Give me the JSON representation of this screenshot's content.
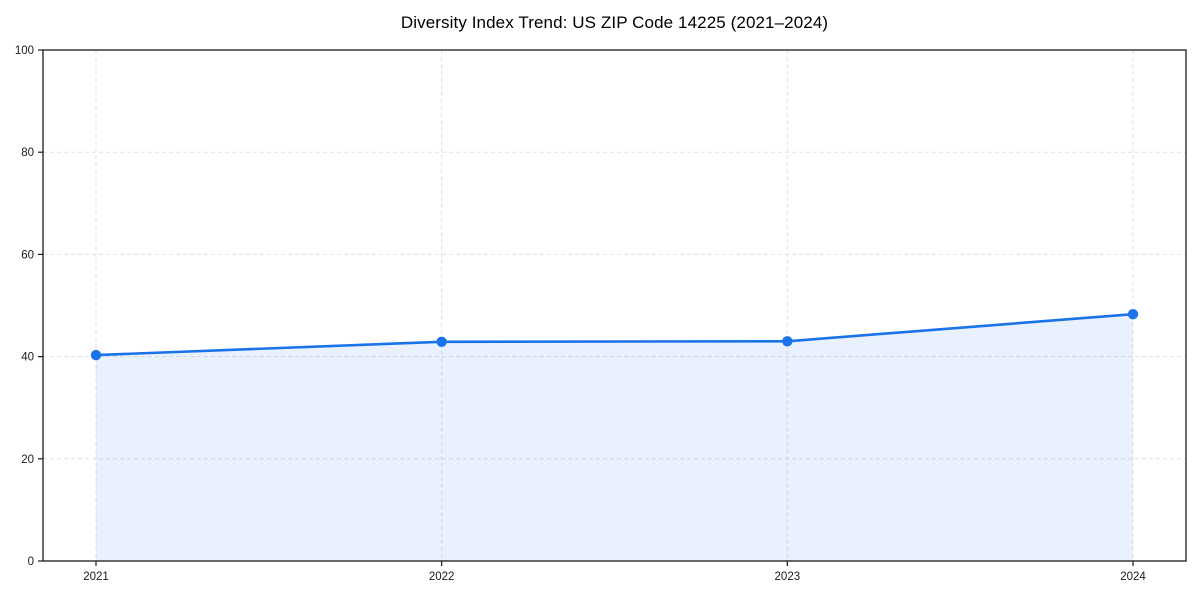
{
  "page": {
    "background": "#ffffff"
  },
  "chart_data": {
    "type": "area",
    "title": "Diversity Index Trend: US ZIP Code 14225 (2021–2024)",
    "categories": [
      "2021",
      "2022",
      "2023",
      "2024"
    ],
    "series": [
      {
        "name": "Diversity Index",
        "values": [
          40.3,
          42.9,
          43.0,
          48.3
        ]
      }
    ],
    "xlabel": "",
    "ylabel": "",
    "ylim": [
      0,
      100
    ],
    "yticks": [
      0,
      20,
      40,
      60,
      80,
      100
    ],
    "grid": "dashed, both axes",
    "legend_position": "none",
    "marker": "circle",
    "colors": {
      "line": "#1a73e8",
      "marker": "#1a73e8",
      "area_fill": "rgba(26,115,232,0.10)",
      "grid": "#dddddd",
      "spine": "#1a1a1a",
      "tick": "#1a1a1a",
      "tick_label": "#1a1a1a",
      "title": "#000000"
    }
  }
}
